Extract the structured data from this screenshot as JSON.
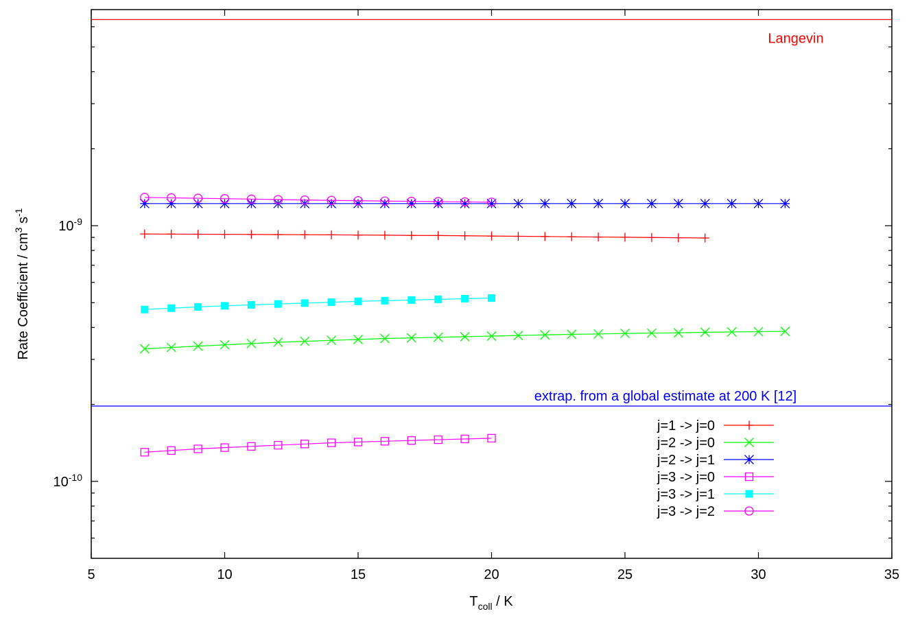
{
  "chart_data": {
    "type": "line",
    "title": "",
    "xlabel": {
      "main": "T",
      "sub": "coll",
      "rest": " / K"
    },
    "ylabel": {
      "text": "Rate Coefficient / cm",
      "sup1": "3",
      "mid": " s",
      "sup2": "-1"
    },
    "xlim": [
      5,
      35
    ],
    "ylim": [
      5e-11,
      7e-09
    ],
    "ylog": true,
    "grid": false,
    "legend_position": "bottom-right",
    "xticks": [
      5,
      10,
      15,
      20,
      25,
      30,
      35
    ],
    "yticks_major": [
      {
        "value": 1e-10,
        "mantissa": "10",
        "exponent": "-10"
      },
      {
        "value": 1e-09,
        "mantissa": "10",
        "exponent": "-9"
      }
    ],
    "reference_lines": [
      {
        "name": "Langevin",
        "value": 6.4e-09,
        "color": "#ff0000"
      },
      {
        "name": "extrap. from a global estimate at 200 K [12]",
        "value": 1.97e-10,
        "color": "#0000ff"
      }
    ],
    "series": [
      {
        "name": "j=1 -> j=0",
        "color": "#ff0000",
        "marker": "plus",
        "x": [
          7,
          8,
          9,
          10,
          11,
          12,
          13,
          14,
          15,
          16,
          17,
          18,
          19,
          20,
          21,
          22,
          23,
          24,
          25,
          26,
          27,
          28
        ],
        "y": [
          9.28e-10,
          9.27e-10,
          9.26e-10,
          9.25e-10,
          9.24e-10,
          9.23e-10,
          9.22e-10,
          9.21e-10,
          9.19e-10,
          9.18e-10,
          9.16e-10,
          9.15e-10,
          9.13e-10,
          9.11e-10,
          9.09e-10,
          9.07e-10,
          9.05e-10,
          9.03e-10,
          9.01e-10,
          8.99e-10,
          8.97e-10,
          8.95e-10
        ]
      },
      {
        "name": "j=2 -> j=0",
        "color": "#00ff00",
        "marker": "x",
        "x": [
          7,
          8,
          9,
          10,
          11,
          12,
          13,
          14,
          15,
          16,
          17,
          18,
          19,
          20,
          21,
          22,
          23,
          24,
          25,
          26,
          27,
          28,
          29,
          30,
          31
        ],
        "y": [
          3.3e-10,
          3.34e-10,
          3.38e-10,
          3.42e-10,
          3.46e-10,
          3.5e-10,
          3.53e-10,
          3.56e-10,
          3.59e-10,
          3.62e-10,
          3.64e-10,
          3.66e-10,
          3.68e-10,
          3.7e-10,
          3.72e-10,
          3.74e-10,
          3.76e-10,
          3.77e-10,
          3.79e-10,
          3.8e-10,
          3.81e-10,
          3.83e-10,
          3.84e-10,
          3.85e-10,
          3.86e-10
        ]
      },
      {
        "name": "j=2 -> j=1",
        "color": "#0000ff",
        "marker": "star",
        "x": [
          7,
          8,
          9,
          10,
          11,
          12,
          13,
          14,
          15,
          16,
          17,
          18,
          19,
          20,
          21,
          22,
          23,
          24,
          25,
          26,
          27,
          28,
          29,
          30,
          31
        ],
        "y": [
          1.22e-09,
          1.22e-09,
          1.22e-09,
          1.22e-09,
          1.22e-09,
          1.22e-09,
          1.22e-09,
          1.22e-09,
          1.22e-09,
          1.22e-09,
          1.22e-09,
          1.22e-09,
          1.22e-09,
          1.22e-09,
          1.22e-09,
          1.22e-09,
          1.22e-09,
          1.22e-09,
          1.22e-09,
          1.22e-09,
          1.22e-09,
          1.22e-09,
          1.22e-09,
          1.22e-09,
          1.22e-09
        ]
      },
      {
        "name": "j=3 -> j=0",
        "color": "#ff00ff",
        "marker": "square-open",
        "x": [
          7,
          8,
          9,
          10,
          11,
          12,
          13,
          14,
          15,
          16,
          17,
          18,
          19,
          20
        ],
        "y": [
          1.3e-10,
          1.32e-10,
          1.34e-10,
          1.355e-10,
          1.37e-10,
          1.385e-10,
          1.4e-10,
          1.415e-10,
          1.425e-10,
          1.435e-10,
          1.445e-10,
          1.455e-10,
          1.465e-10,
          1.475e-10
        ]
      },
      {
        "name": "j=3 -> j=1",
        "color": "#00ffff",
        "marker": "square-filled",
        "x": [
          7,
          8,
          9,
          10,
          11,
          12,
          13,
          14,
          15,
          16,
          17,
          18,
          19,
          20
        ],
        "y": [
          4.7e-10,
          4.76e-10,
          4.81e-10,
          4.86e-10,
          4.9e-10,
          4.94e-10,
          4.98e-10,
          5.02e-10,
          5.06e-10,
          5.09e-10,
          5.12e-10,
          5.15e-10,
          5.18e-10,
          5.21e-10
        ]
      },
      {
        "name": "j=3 -> j=2",
        "color": "#ff00ff",
        "marker": "circle-open",
        "x": [
          7,
          8,
          9,
          10,
          11,
          12,
          13,
          14,
          15,
          16,
          17,
          18,
          19,
          20
        ],
        "y": [
          1.29e-09,
          1.285e-09,
          1.28e-09,
          1.275e-09,
          1.27e-09,
          1.265e-09,
          1.26e-09,
          1.256e-09,
          1.252e-09,
          1.248e-09,
          1.245e-09,
          1.242e-09,
          1.239e-09,
          1.236e-09
        ]
      }
    ]
  }
}
